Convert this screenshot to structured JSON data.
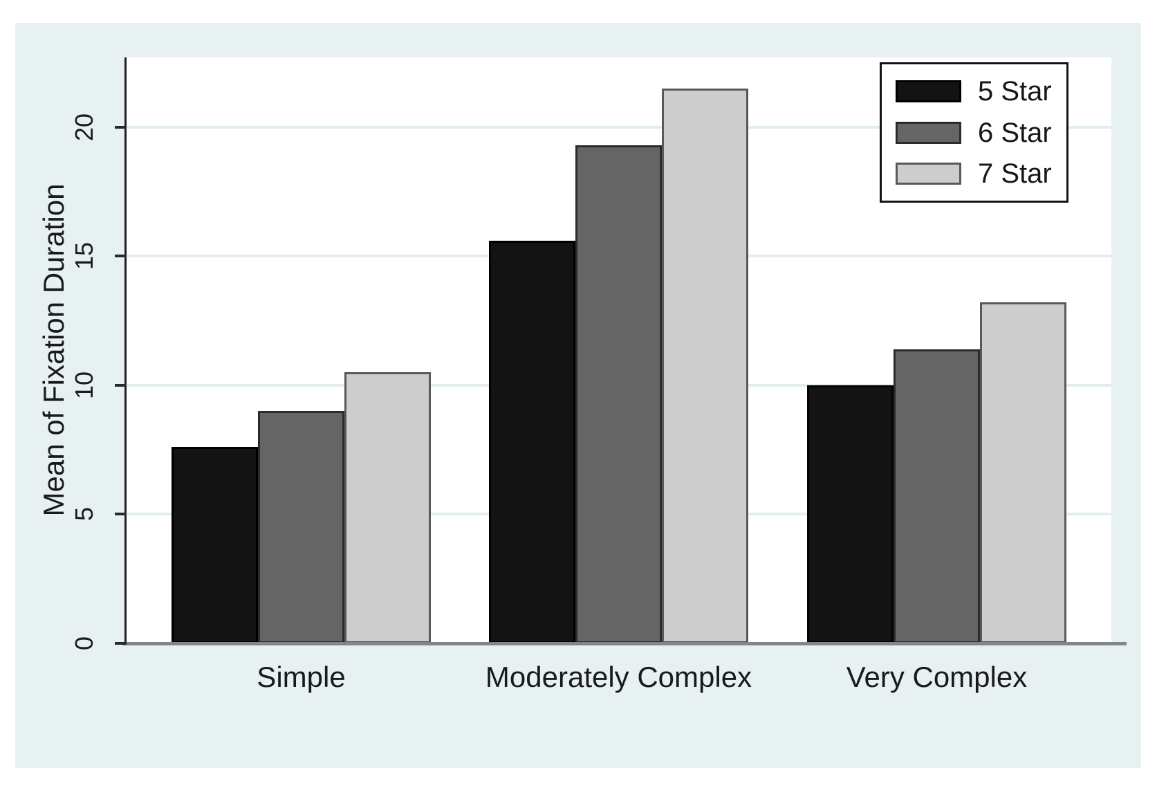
{
  "chart_data": {
    "type": "bar",
    "title": "",
    "categories": [
      "Simple",
      "Moderately Complex",
      "Very Complex"
    ],
    "series": [
      {
        "name": "5 Star",
        "color": "#131313",
        "border": "#000000",
        "values": [
          7.6,
          15.6,
          10.0
        ]
      },
      {
        "name": "6 Star",
        "color": "#656565",
        "border": "#2b2b2b",
        "values": [
          9.0,
          19.3,
          11.4
        ]
      },
      {
        "name": "7 Star",
        "color": "#cdcdcd",
        "border": "#595959",
        "values": [
          10.5,
          21.5,
          13.2
        ]
      }
    ],
    "xlabel": "",
    "ylabel": "Mean of Fixation Duration",
    "yticks": [
      0,
      5,
      10,
      15,
      20
    ],
    "ylim": [
      0,
      22.7
    ],
    "grid": true,
    "legend_position": "top-right"
  },
  "colors": {
    "page_background": "#ffffff",
    "region_background": "#e8f1f2",
    "plot_background": "#ffffff",
    "gridline": "#e0eef0",
    "y_axis_line": "#1f1f1f",
    "x_axis_line": "#7f878a",
    "text": "#1a1a1a",
    "legend_background": "#ffffff",
    "legend_border": "#141414"
  }
}
